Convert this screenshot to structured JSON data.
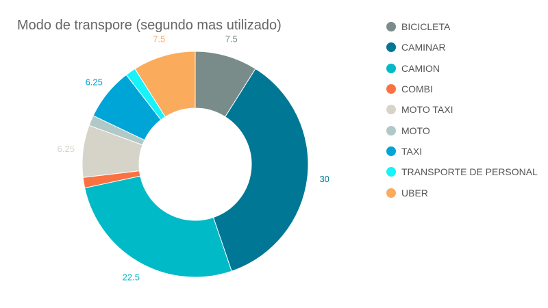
{
  "chart_data": {
    "type": "pie",
    "title": "Modo de transpore (segundo mas utilizado)",
    "donut": true,
    "categories": [
      "BICICLETA",
      "CAMINAR",
      "CAMION",
      "COMBI",
      "MOTO TAXI",
      "MOTO",
      "TAXI",
      "TRANSPORTE DE PERSONAL",
      "UBER"
    ],
    "values": [
      7.5,
      30,
      22.5,
      1.25,
      6.25,
      1.25,
      6.25,
      1.25,
      7.5
    ],
    "colors": [
      "#7a8c89",
      "#007794",
      "#00bac8",
      "#fa7242",
      "#d6d4c8",
      "#b0c8c8",
      "#00a5d8",
      "#17f2fb",
      "#fbab5c"
    ],
    "data_labels": [
      "7.5",
      "30",
      "22.5",
      "",
      "6.25",
      "",
      "6.25",
      "",
      "7.5"
    ],
    "legend_position": "right"
  }
}
